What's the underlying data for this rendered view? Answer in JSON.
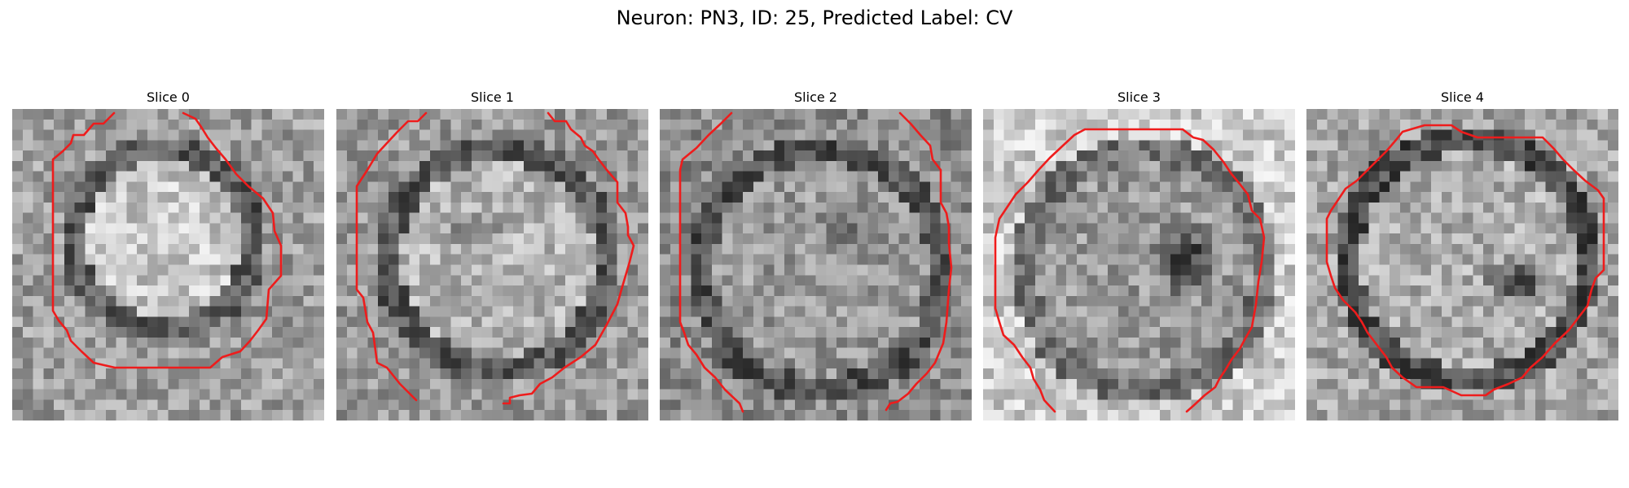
{
  "figure": {
    "title": "Neuron: PN3, ID: 25, Predicted Label: CV",
    "contour_color": "#ee1c1c",
    "colormap": "gray"
  },
  "panels": [
    {
      "title": "Slice 0",
      "pattern": "bright-center"
    },
    {
      "title": "Slice 1",
      "pattern": "bright-with-dark-streak"
    },
    {
      "title": "Slice 2",
      "pattern": "mottled-mid"
    },
    {
      "title": "Slice 3",
      "pattern": "dark-center"
    },
    {
      "title": "Slice 4",
      "pattern": "dark-offset-center"
    }
  ]
}
